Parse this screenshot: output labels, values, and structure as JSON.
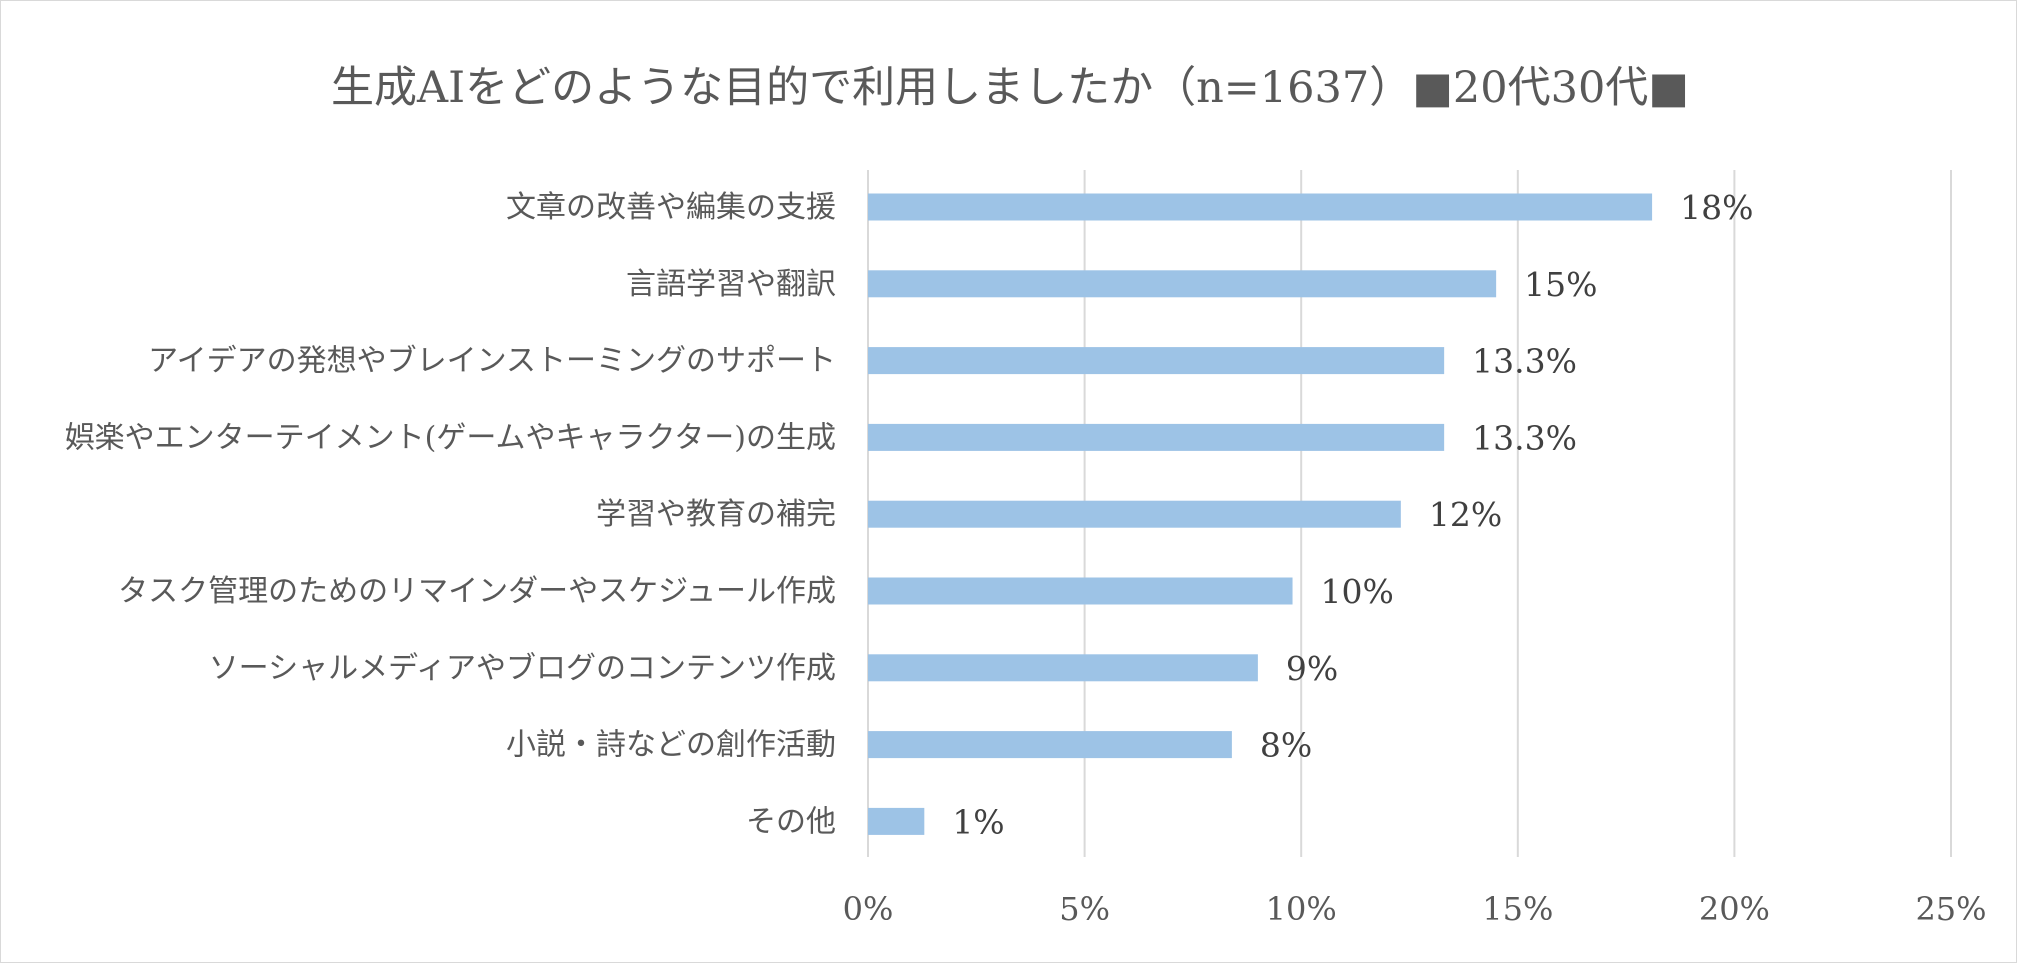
{
  "chart_data": {
    "type": "bar",
    "orientation": "horizontal",
    "title": "生成AIをどのような目的で利用しましたか（n=1637）■20代30代■",
    "categories": [
      "文章の改善や編集の支援",
      "言語学習や翻訳",
      "アイデアの発想やブレインストーミングのサポート",
      "娯楽やエンターテイメント(ゲームやキャラクター)の生成",
      "学習や教育の補完",
      "タスク管理のためのリマインダーやスケジュール作成",
      "ソーシャルメディアやブログのコンテンツ作成",
      "小説・詩などの創作活動",
      "その他"
    ],
    "values": [
      18.1,
      14.5,
      13.3,
      13.3,
      12.3,
      9.8,
      9.0,
      8.4,
      1.3
    ],
    "data_labels": [
      "18%",
      "15%",
      "13.3%",
      "13.3%",
      "12%",
      "10%",
      "9%",
      "8%",
      "1%"
    ],
    "xlim": [
      0,
      25
    ],
    "x_ticks": [
      0,
      5,
      10,
      15,
      20,
      25
    ],
    "x_tick_labels": [
      "0%",
      "5%",
      "10%",
      "15%",
      "20%",
      "25%"
    ],
    "xlabel": "",
    "ylabel": "",
    "grid": "vertical",
    "legend": "none",
    "colors": {
      "bar": "#9dc3e6",
      "grid": "#d9d9d9",
      "text": "#595959",
      "data_label": "#404040"
    }
  }
}
